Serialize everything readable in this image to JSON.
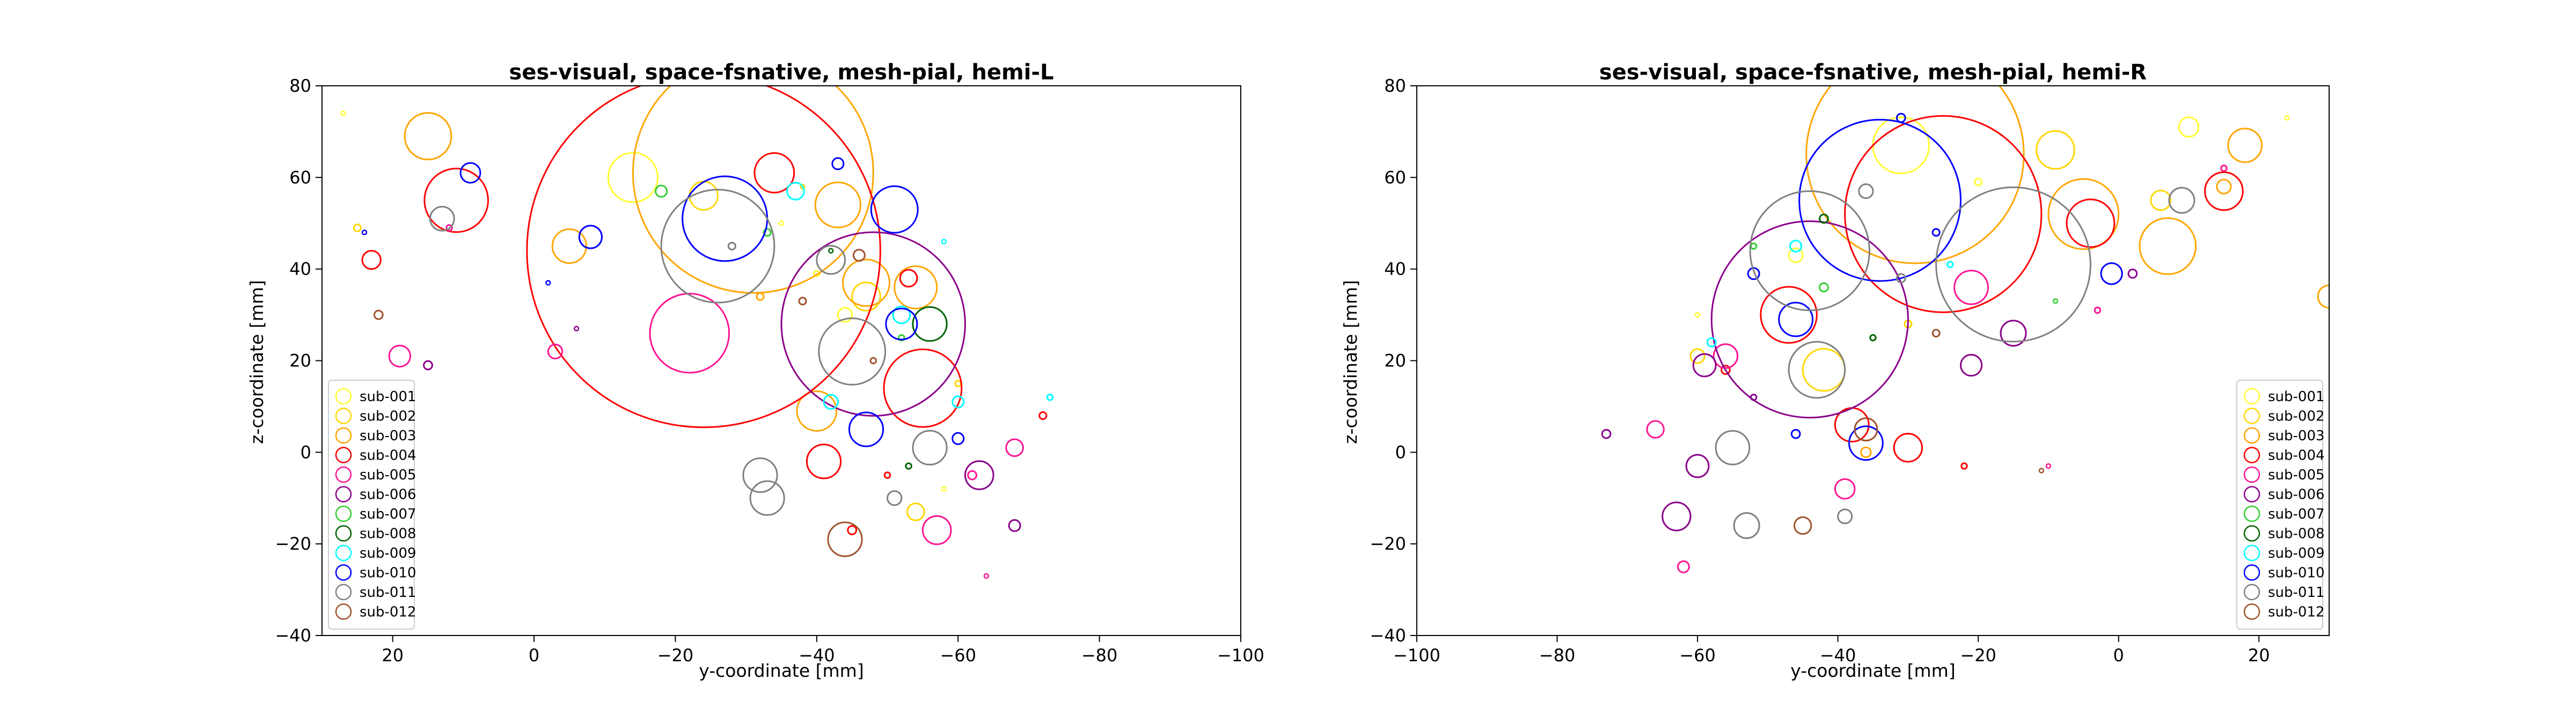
{
  "colors": {
    "sub-001": "#ffff33",
    "sub-002": "#ffd700",
    "sub-003": "#ffa500",
    "sub-004": "#ff0000",
    "sub-005": "#ff1493",
    "sub-006": "#8b008b",
    "sub-007": "#32cd32",
    "sub-008": "#006400",
    "sub-009": "#00ffff",
    "sub-010": "#0000ff",
    "sub-011": "#808080",
    "sub-012": "#a0522d"
  },
  "chart_data": [
    {
      "type": "scatter",
      "title": "ses-visual, space-fsnative, mesh-pial, hemi-L",
      "xlabel": "y-coordinate [mm]",
      "ylabel": "z-coordinate [mm]",
      "xlim": [
        30,
        -100
      ],
      "ylim": [
        -40,
        80
      ],
      "xticks": [
        20,
        0,
        -20,
        -40,
        -60,
        -80,
        -100
      ],
      "xticklabels": [
        "20",
        "0",
        "−20",
        "−40",
        "−60",
        "−80",
        "−100"
      ],
      "yticks": [
        -40,
        -20,
        0,
        20,
        40,
        60,
        80
      ],
      "yticklabels": [
        "−40",
        "−20",
        "0",
        "20",
        "40",
        "60",
        "80"
      ],
      "marker_size_unit": "mm",
      "legend": {
        "placement": "lower-left",
        "entries": [
          "sub-001",
          "sub-002",
          "sub-003",
          "sub-004",
          "sub-005",
          "sub-006",
          "sub-007",
          "sub-008",
          "sub-009",
          "sub-010",
          "sub-011",
          "sub-012"
        ]
      },
      "series": [
        {
          "name": "sub-001",
          "points": [
            [
              -14,
              60,
              3.5
            ],
            [
              -44,
              30,
              1.0
            ],
            [
              27,
              74,
              0.3
            ],
            [
              -40,
              39,
              0.4
            ],
            [
              -58,
              -8,
              0.3
            ],
            [
              -35,
              50,
              0.3
            ]
          ]
        },
        {
          "name": "sub-002",
          "points": [
            [
              -24,
              56,
              2.0
            ],
            [
              -47,
              34,
              2.0
            ],
            [
              25,
              49,
              0.5
            ],
            [
              -54,
              -13,
              1.2
            ],
            [
              -38,
              58,
              0.3
            ],
            [
              -60,
              15,
              0.4
            ]
          ]
        },
        {
          "name": "sub-003",
          "points": [
            [
              -31,
              61,
              17.0
            ],
            [
              15,
              69,
              3.3
            ],
            [
              -5,
              45,
              2.4
            ],
            [
              -43,
              54,
              3.2
            ],
            [
              -47,
              37,
              3.3
            ],
            [
              -54,
              36,
              3.0
            ],
            [
              -40,
              9,
              2.8
            ],
            [
              -32,
              34,
              0.5
            ]
          ]
        },
        {
          "name": "sub-004",
          "points": [
            [
              -24,
              44,
              25.0
            ],
            [
              11,
              55,
              4.5
            ],
            [
              -34,
              61,
              2.8
            ],
            [
              -55,
              14,
              5.5
            ],
            [
              -41,
              -2,
              2.4
            ],
            [
              -53,
              38,
              1.2
            ],
            [
              23,
              42,
              1.3
            ],
            [
              -45,
              -17,
              0.6
            ],
            [
              -72,
              8,
              0.5
            ],
            [
              -50,
              -5,
              0.4
            ]
          ]
        },
        {
          "name": "sub-005",
          "points": [
            [
              -22,
              26,
              5.6
            ],
            [
              19,
              21,
              1.5
            ],
            [
              -3,
              22,
              1.0
            ],
            [
              -57,
              -17,
              2.0
            ],
            [
              -68,
              1,
              1.2
            ],
            [
              -62,
              -5,
              0.6
            ],
            [
              -64,
              -27,
              0.3
            ],
            [
              12,
              49,
              0.4
            ]
          ]
        },
        {
          "name": "sub-006",
          "points": [
            [
              -48,
              28,
              13.0
            ],
            [
              -63,
              -5,
              2.0
            ],
            [
              -68,
              -16,
              0.8
            ],
            [
              15,
              19,
              0.6
            ],
            [
              -6,
              27,
              0.3
            ]
          ]
        },
        {
          "name": "sub-007",
          "points": [
            [
              -18,
              57,
              0.8
            ],
            [
              -33,
              48,
              0.5
            ],
            [
              -52,
              25,
              0.4
            ]
          ]
        },
        {
          "name": "sub-008",
          "points": [
            [
              -56,
              28,
              2.4
            ],
            [
              -53,
              -3,
              0.4
            ],
            [
              -42,
              44,
              0.3
            ]
          ]
        },
        {
          "name": "sub-009",
          "points": [
            [
              -37,
              57,
              1.2
            ],
            [
              -52,
              30,
              1.2
            ],
            [
              -60,
              11,
              0.8
            ],
            [
              -42,
              11,
              1.0
            ],
            [
              -58,
              46,
              0.3
            ],
            [
              -73,
              12,
              0.4
            ]
          ]
        },
        {
          "name": "sub-010",
          "points": [
            [
              -27,
              51,
              6.0
            ],
            [
              -51,
              53,
              3.3
            ],
            [
              -47,
              5,
              2.4
            ],
            [
              -52,
              28,
              2.2
            ],
            [
              9,
              61,
              1.4
            ],
            [
              -8,
              47,
              1.6
            ],
            [
              -60,
              3,
              0.8
            ],
            [
              -43,
              63,
              0.8
            ],
            [
              -2,
              37,
              0.3
            ],
            [
              24,
              48,
              0.3
            ]
          ]
        },
        {
          "name": "sub-011",
          "points": [
            [
              -26,
              45,
              8.0
            ],
            [
              -45,
              22,
              4.7
            ],
            [
              -56,
              1,
              2.4
            ],
            [
              -32,
              -5,
              2.4
            ],
            [
              -33,
              -10,
              2.4
            ],
            [
              13,
              51,
              1.7
            ],
            [
              -42,
              42,
              2.0
            ],
            [
              -51,
              -10,
              1.0
            ],
            [
              -28,
              45,
              0.5
            ]
          ]
        },
        {
          "name": "sub-012",
          "points": [
            [
              -44,
              -19,
              2.4
            ],
            [
              -46,
              43,
              0.8
            ],
            [
              22,
              30,
              0.6
            ],
            [
              -38,
              33,
              0.5
            ],
            [
              -48,
              20,
              0.4
            ]
          ]
        }
      ]
    },
    {
      "type": "scatter",
      "title": "ses-visual, space-fsnative, mesh-pial, hemi-R",
      "xlabel": "y-coordinate [mm]",
      "ylabel": "z-coordinate [mm]",
      "xlim": [
        -100,
        30
      ],
      "ylim": [
        -40,
        80
      ],
      "xticks": [
        -100,
        -80,
        -60,
        -40,
        -20,
        0,
        20
      ],
      "xticklabels": [
        "−100",
        "−80",
        "−60",
        "−40",
        "−20",
        "0",
        "20"
      ],
      "yticks": [
        -40,
        -20,
        0,
        20,
        40,
        60,
        80
      ],
      "yticklabels": [
        "−40",
        "−20",
        "0",
        "20",
        "40",
        "60",
        "80"
      ],
      "marker_size_unit": "mm",
      "legend": {
        "placement": "lower-right",
        "entries": [
          "sub-001",
          "sub-002",
          "sub-003",
          "sub-004",
          "sub-005",
          "sub-006",
          "sub-007",
          "sub-008",
          "sub-009",
          "sub-010",
          "sub-011",
          "sub-012"
        ]
      },
      "series": [
        {
          "name": "sub-001",
          "points": [
            [
              -31,
              67,
              4.0
            ],
            [
              10,
              71,
              1.4
            ],
            [
              -46,
              43,
              1.0
            ],
            [
              -20,
              59,
              0.5
            ],
            [
              -60,
              30,
              0.3
            ],
            [
              24,
              73,
              0.3
            ]
          ]
        },
        {
          "name": "sub-002",
          "points": [
            [
              -9,
              66,
              2.7
            ],
            [
              -42,
              18,
              3.0
            ],
            [
              -60,
              21,
              1.0
            ],
            [
              6,
              55,
              1.4
            ],
            [
              -30,
              28,
              0.5
            ]
          ]
        },
        {
          "name": "sub-003",
          "points": [
            [
              -29,
              65,
              15.5
            ],
            [
              -5,
              52,
              5.0
            ],
            [
              7,
              45,
              4.0
            ],
            [
              18,
              67,
              2.4
            ],
            [
              30,
              34,
              1.6
            ],
            [
              15,
              58,
              1.0
            ],
            [
              -36,
              0,
              0.7
            ]
          ]
        },
        {
          "name": "sub-004",
          "points": [
            [
              -25,
              52,
              14.0
            ],
            [
              -4,
              50,
              3.4
            ],
            [
              -47,
              30,
              4.0
            ],
            [
              15,
              57,
              2.7
            ],
            [
              -30,
              1,
              2.0
            ],
            [
              -38,
              6,
              2.4
            ],
            [
              -56,
              18,
              0.6
            ],
            [
              -22,
              -3,
              0.4
            ]
          ]
        },
        {
          "name": "sub-005",
          "points": [
            [
              -21,
              36,
              2.4
            ],
            [
              -56,
              21,
              1.7
            ],
            [
              -66,
              5,
              1.2
            ],
            [
              -39,
              -8,
              1.4
            ],
            [
              -62,
              -25,
              0.8
            ],
            [
              -10,
              -3,
              0.3
            ],
            [
              -3,
              31,
              0.4
            ],
            [
              15,
              62,
              0.4
            ]
          ]
        },
        {
          "name": "sub-006",
          "points": [
            [
              -44,
              29,
              14.0
            ],
            [
              -60,
              -3,
              1.6
            ],
            [
              -63,
              -14,
              2.0
            ],
            [
              -59,
              19,
              1.6
            ],
            [
              -15,
              26,
              1.8
            ],
            [
              -21,
              19,
              1.5
            ],
            [
              -73,
              4,
              0.6
            ],
            [
              -52,
              12,
              0.4
            ],
            [
              2,
              39,
              0.6
            ]
          ]
        },
        {
          "name": "sub-007",
          "points": [
            [
              -42,
              36,
              0.6
            ],
            [
              -52,
              45,
              0.4
            ],
            [
              -9,
              33,
              0.3
            ]
          ]
        },
        {
          "name": "sub-008",
          "points": [
            [
              -42,
              51,
              0.6
            ],
            [
              -35,
              25,
              0.4
            ]
          ]
        },
        {
          "name": "sub-009",
          "points": [
            [
              -46,
              45,
              0.8
            ],
            [
              -58,
              24,
              0.6
            ],
            [
              -24,
              41,
              0.4
            ]
          ]
        },
        {
          "name": "sub-010",
          "points": [
            [
              -34,
              55,
              11.5
            ],
            [
              -46,
              29,
              2.4
            ],
            [
              -36,
              2,
              2.4
            ],
            [
              -1,
              39,
              1.5
            ],
            [
              -31,
              73,
              0.6
            ],
            [
              -52,
              39,
              0.8
            ],
            [
              -26,
              48,
              0.5
            ],
            [
              -46,
              4,
              0.6
            ]
          ]
        },
        {
          "name": "sub-011",
          "points": [
            [
              -15,
              41,
              11.0
            ],
            [
              -44,
              44,
              8.5
            ],
            [
              -43,
              18,
              4.0
            ],
            [
              -55,
              1,
              2.4
            ],
            [
              -53,
              -16,
              1.8
            ],
            [
              9,
              55,
              1.8
            ],
            [
              -39,
              -14,
              1.0
            ],
            [
              -36,
              57,
              1.0
            ],
            [
              -31,
              38,
              0.6
            ]
          ]
        },
        {
          "name": "sub-012",
          "points": [
            [
              -36,
              5,
              1.6
            ],
            [
              -45,
              -16,
              1.2
            ],
            [
              -26,
              26,
              0.5
            ],
            [
              -11,
              -4,
              0.3
            ]
          ]
        }
      ]
    }
  ]
}
